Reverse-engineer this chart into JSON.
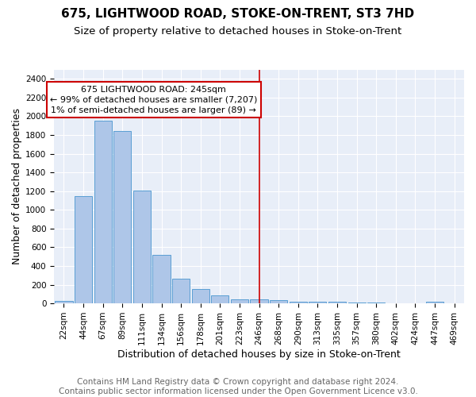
{
  "title": "675, LIGHTWOOD ROAD, STOKE-ON-TRENT, ST3 7HD",
  "subtitle": "Size of property relative to detached houses in Stoke-on-Trent",
  "xlabel": "Distribution of detached houses by size in Stoke-on-Trent",
  "ylabel": "Number of detached properties",
  "footer_line1": "Contains HM Land Registry data © Crown copyright and database right 2024.",
  "footer_line2": "Contains public sector information licensed under the Open Government Licence v3.0.",
  "bar_labels": [
    "22sqm",
    "44sqm",
    "67sqm",
    "89sqm",
    "111sqm",
    "134sqm",
    "156sqm",
    "178sqm",
    "201sqm",
    "223sqm",
    "246sqm",
    "268sqm",
    "290sqm",
    "313sqm",
    "335sqm",
    "357sqm",
    "380sqm",
    "402sqm",
    "424sqm",
    "447sqm",
    "469sqm"
  ],
  "bar_values": [
    30,
    1150,
    1950,
    1840,
    1210,
    515,
    265,
    150,
    85,
    45,
    40,
    35,
    20,
    20,
    15,
    10,
    10,
    5,
    5,
    20,
    5
  ],
  "bar_color": "#aec6e8",
  "bar_edge_color": "#5a9fd4",
  "vline_x_index": 10,
  "vline_color": "#cc0000",
  "ylim": [
    0,
    2500
  ],
  "yticks": [
    0,
    200,
    400,
    600,
    800,
    1000,
    1200,
    1400,
    1600,
    1800,
    2000,
    2200,
    2400
  ],
  "annotation_line1": "675 LIGHTWOOD ROAD: 245sqm",
  "annotation_line2": "← 99% of detached houses are smaller (7,207)",
  "annotation_line3": "1% of semi-detached houses are larger (89) →",
  "annotation_box_color": "#ffffff",
  "annotation_box_edge": "#cc0000",
  "bg_color": "#e8eef8",
  "grid_color": "#ffffff",
  "title_fontsize": 11,
  "subtitle_fontsize": 9.5,
  "xlabel_fontsize": 9,
  "ylabel_fontsize": 9,
  "tick_fontsize": 7.5,
  "footer_fontsize": 7.5,
  "annotation_fontsize": 8
}
